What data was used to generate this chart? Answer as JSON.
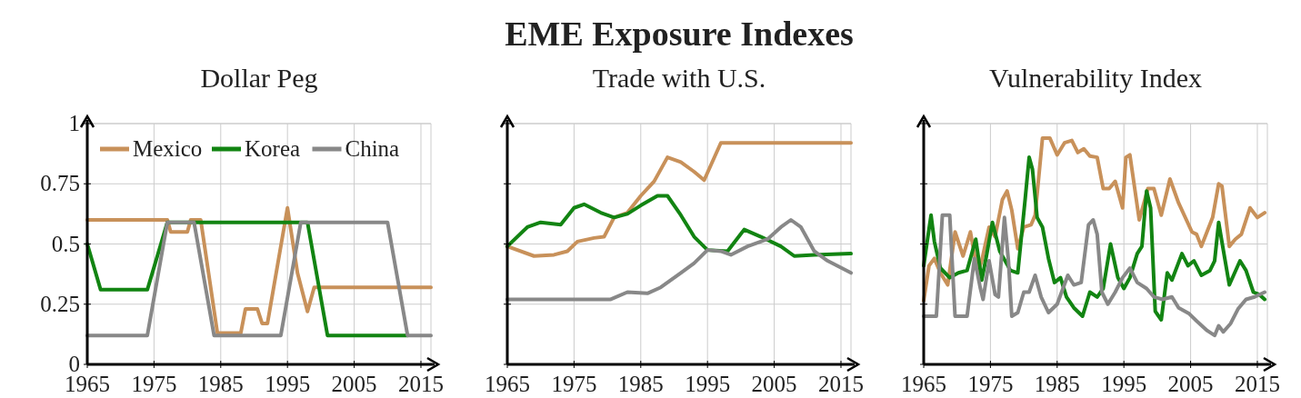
{
  "chart_data": [
    {
      "type": "line",
      "subtitle": "Dollar Peg",
      "xlim": [
        1965,
        2016.5
      ],
      "ylim": [
        0,
        1
      ],
      "xticks": [
        1965,
        1975,
        1985,
        1995,
        2005,
        2015
      ],
      "yticks": [
        0,
        0.25,
        0.5,
        0.75,
        1
      ],
      "grid": true,
      "legend": "top left",
      "line_style": "solid",
      "series": [
        {
          "name": "Mexico",
          "color": "#c8915a",
          "x": [
            1965,
            1977,
            1977.5,
            1980,
            1980.5,
            1982,
            1984.5,
            1988,
            1988.7,
            1990.5,
            1991.2,
            1992,
            1995,
            1996.5,
            1998,
            1999,
            2016.5
          ],
          "values": [
            0.6,
            0.6,
            0.55,
            0.55,
            0.6,
            0.6,
            0.13,
            0.13,
            0.23,
            0.23,
            0.17,
            0.17,
            0.65,
            0.38,
            0.22,
            0.32,
            0.32
          ]
        },
        {
          "name": "Korea",
          "color": "#128412",
          "x": [
            1965,
            1967,
            1974,
            1977,
            1998,
            2001,
            2013
          ],
          "values": [
            0.5,
            0.31,
            0.31,
            0.59,
            0.59,
            0.12,
            0.12
          ]
        },
        {
          "name": "China",
          "color": "#888888",
          "x": [
            1965,
            1974,
            1977,
            1981,
            1984,
            1994,
            1997,
            2010,
            2013,
            2016.5
          ],
          "values": [
            0.12,
            0.12,
            0.59,
            0.59,
            0.12,
            0.12,
            0.59,
            0.59,
            0.12,
            0.12
          ]
        }
      ]
    },
    {
      "type": "line",
      "title": "EME Exposure Indexes",
      "subtitle": "Trade with U.S.",
      "xlim": [
        1965,
        2016.5
      ],
      "ylim": [
        0,
        1
      ],
      "xticks": [
        1965,
        1975,
        1985,
        1995,
        2005,
        2015
      ],
      "yticks": [
        0,
        0.25,
        0.5,
        0.75,
        1
      ],
      "grid": true,
      "tick_labels": "x",
      "line_style": "solid",
      "series": [
        {
          "color": "#c8915a",
          "x": [
            1965,
            1969,
            1972,
            1974,
            1975.5,
            1978,
            1979.5,
            1981,
            1983,
            1985,
            1987,
            1989,
            1991,
            1993,
            1994.5,
            1997,
            2016.5
          ],
          "values": [
            0.49,
            0.45,
            0.455,
            0.47,
            0.51,
            0.525,
            0.53,
            0.61,
            0.63,
            0.7,
            0.76,
            0.86,
            0.84,
            0.8,
            0.765,
            0.92,
            0.92
          ]
        },
        {
          "color": "#128412",
          "x": [
            1965,
            1968,
            1970,
            1973,
            1975,
            1976.5,
            1979,
            1981,
            1983,
            1985,
            1987.5,
            1989,
            1991,
            1993,
            1995,
            1998,
            2000.5,
            2003,
            2006,
            2008,
            2011,
            2016.5
          ],
          "values": [
            0.49,
            0.57,
            0.59,
            0.58,
            0.65,
            0.665,
            0.63,
            0.61,
            0.625,
            0.66,
            0.7,
            0.7,
            0.62,
            0.53,
            0.475,
            0.47,
            0.56,
            0.53,
            0.49,
            0.45,
            0.455,
            0.46
          ]
        },
        {
          "color": "#888888",
          "x": [
            1965,
            1980.5,
            1983,
            1986,
            1988,
            1991,
            1993,
            1995,
            1997,
            1998.5,
            2001,
            2004,
            2006,
            2007.5,
            2009,
            2011,
            2013,
            2016.5
          ],
          "values": [
            0.27,
            0.27,
            0.3,
            0.295,
            0.32,
            0.38,
            0.42,
            0.475,
            0.47,
            0.455,
            0.49,
            0.52,
            0.57,
            0.6,
            0.57,
            0.47,
            0.43,
            0.38
          ]
        }
      ]
    },
    {
      "type": "line",
      "subtitle": "Vulnerability Index",
      "xlim": [
        1965,
        2016.5
      ],
      "ylim": [
        0,
        1
      ],
      "xticks": [
        1965,
        1975,
        1985,
        1995,
        2005,
        2015
      ],
      "yticks": [
        0,
        0.25,
        0.5,
        0.75,
        1
      ],
      "grid": true,
      "tick_labels": "x",
      "line_style": "solid",
      "series": [
        {
          "color": "#c8915a",
          "x": [
            1965,
            1965.8,
            1966.6,
            1967.5,
            1968.6,
            1969.7,
            1970.9,
            1972,
            1973.1,
            1973.7,
            1974.8,
            1975.7,
            1976.8,
            1977.5,
            1978.2,
            1979.1,
            1980,
            1981.1,
            1981.7,
            1982.8,
            1983.9,
            1985,
            1986.1,
            1987.2,
            1988.1,
            1989,
            1989.9,
            1991,
            1991.9,
            1992.8,
            1993.7,
            1994.8,
            1995.3,
            1995.9,
            1997.3,
            1998.6,
            1999.5,
            2000.6,
            2001.9,
            2003.2,
            2005.2,
            2005.9,
            2006.6,
            2008.3,
            2009.2,
            2009.7,
            2010.8,
            2011.7,
            2012.6,
            2013.9,
            2015,
            2016.1
          ],
          "values": [
            0.265,
            0.41,
            0.44,
            0.38,
            0.33,
            0.55,
            0.45,
            0.55,
            0.38,
            0.43,
            0.57,
            0.53,
            0.685,
            0.72,
            0.64,
            0.48,
            0.57,
            0.58,
            0.62,
            0.94,
            0.94,
            0.87,
            0.92,
            0.93,
            0.88,
            0.895,
            0.865,
            0.86,
            0.73,
            0.73,
            0.76,
            0.65,
            0.86,
            0.87,
            0.6,
            0.73,
            0.73,
            0.62,
            0.77,
            0.67,
            0.55,
            0.54,
            0.49,
            0.61,
            0.75,
            0.74,
            0.49,
            0.52,
            0.54,
            0.65,
            0.61,
            0.63
          ]
        },
        {
          "color": "#128412",
          "x": [
            1965,
            1966.1,
            1966.6,
            1967.5,
            1968.9,
            1970.2,
            1971.5,
            1972.8,
            1973.7,
            1974.4,
            1975.3,
            1976.4,
            1978,
            1979.1,
            1980.2,
            1980.8,
            1981.3,
            1982,
            1982.8,
            1983.7,
            1984.6,
            1985.5,
            1986.4,
            1987.5,
            1988.8,
            1989.9,
            1991,
            1991.9,
            1993,
            1994.1,
            1995,
            1995.9,
            1997,
            1997.7,
            1998.4,
            1999,
            1999.7,
            2000.6,
            2001.5,
            2002.2,
            2003.7,
            2004.6,
            2005.5,
            2006.6,
            2007.9,
            2008.6,
            2009.2,
            2009.9,
            2010.8,
            2012.4,
            2013.3,
            2014.4,
            2015.3,
            2016.1
          ],
          "values": [
            0.41,
            0.62,
            0.51,
            0.4,
            0.36,
            0.38,
            0.39,
            0.52,
            0.35,
            0.45,
            0.59,
            0.47,
            0.39,
            0.38,
            0.685,
            0.86,
            0.81,
            0.61,
            0.57,
            0.44,
            0.34,
            0.36,
            0.28,
            0.235,
            0.2,
            0.3,
            0.28,
            0.315,
            0.5,
            0.36,
            0.315,
            0.36,
            0.46,
            0.49,
            0.72,
            0.65,
            0.22,
            0.185,
            0.38,
            0.35,
            0.46,
            0.41,
            0.43,
            0.37,
            0.39,
            0.43,
            0.59,
            0.475,
            0.33,
            0.43,
            0.39,
            0.3,
            0.29,
            0.27
          ]
        },
        {
          "color": "#888888",
          "x": [
            1965,
            1966.9,
            1967.8,
            1968.9,
            1969.7,
            1971.5,
            1972.6,
            1973.5,
            1973.9,
            1974.8,
            1975.7,
            1976.2,
            1977.1,
            1977.7,
            1978.2,
            1979.1,
            1980,
            1980.8,
            1981.7,
            1982.6,
            1983.7,
            1985,
            1986.6,
            1987.5,
            1988.6,
            1989.7,
            1990.4,
            1991,
            1991.7,
            1992.6,
            1993.7,
            1994.8,
            1995.9,
            1997,
            1998.4,
            1999.5,
            2000.8,
            2002.2,
            2003.2,
            2004.8,
            2005.9,
            2007.5,
            2008.6,
            2009.2,
            2009.9,
            2011,
            2012.1,
            2013.3,
            2014.6,
            2016.1
          ],
          "values": [
            0.2,
            0.2,
            0.62,
            0.62,
            0.2,
            0.2,
            0.44,
            0.315,
            0.27,
            0.43,
            0.29,
            0.28,
            0.61,
            0.43,
            0.2,
            0.215,
            0.3,
            0.3,
            0.37,
            0.28,
            0.215,
            0.25,
            0.37,
            0.33,
            0.34,
            0.58,
            0.6,
            0.54,
            0.3,
            0.25,
            0.3,
            0.36,
            0.4,
            0.34,
            0.315,
            0.28,
            0.27,
            0.28,
            0.235,
            0.21,
            0.18,
            0.14,
            0.12,
            0.16,
            0.135,
            0.17,
            0.23,
            0.27,
            0.28,
            0.3
          ]
        }
      ]
    }
  ]
}
